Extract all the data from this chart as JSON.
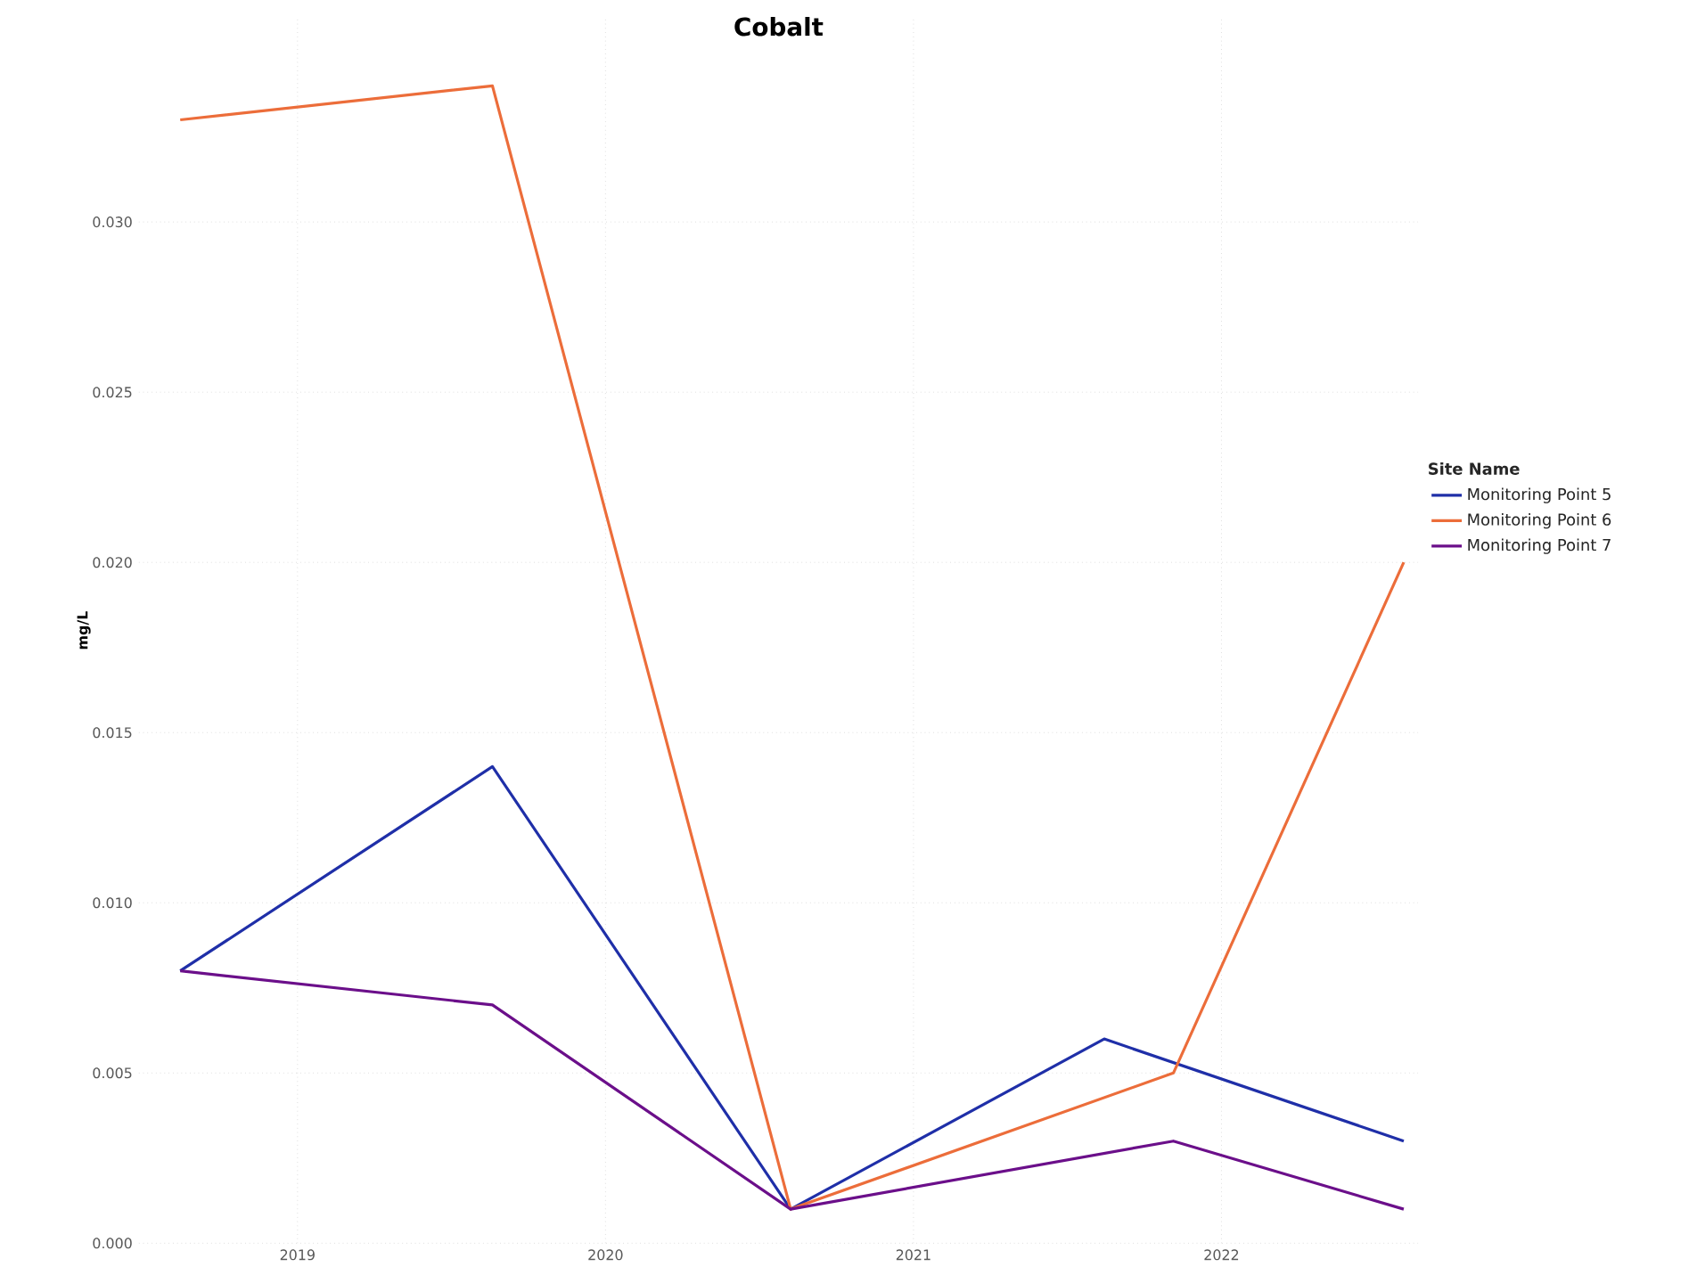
{
  "chart_data": {
    "type": "line",
    "title": "Cobalt",
    "ylabel": "mg/L",
    "legend_title": "Site Name",
    "x": [
      "2018-08-15",
      "2019-08-20",
      "2020-08-08",
      "2021-08-15",
      "2021-11-05",
      "2022-08-05"
    ],
    "series": [
      {
        "name": "Monitoring Point 5",
        "color": "#1f2fa8",
        "values": [
          0.008,
          0.014,
          0.001,
          0.006,
          null,
          0.003
        ]
      },
      {
        "name": "Monitoring Point 6",
        "color": "#ec6d3a",
        "values": [
          0.033,
          0.034,
          0.001,
          null,
          0.005,
          0.02
        ]
      },
      {
        "name": "Monitoring Point 7",
        "color": "#6b0f8a",
        "values": [
          0.008,
          0.007,
          0.001,
          null,
          0.003,
          0.001
        ]
      }
    ],
    "xlim": [
      "2018-06-27",
      "2022-08-22"
    ],
    "xticks": [
      "2019",
      "2020",
      "2021",
      "2022"
    ],
    "ylim": [
      0,
      0.036
    ],
    "yticks": [
      {
        "value": 0,
        "label": "0.000"
      },
      {
        "value": 0.005,
        "label": "0.005"
      },
      {
        "value": 0.01,
        "label": "0.010"
      },
      {
        "value": 0.015,
        "label": "0.015"
      },
      {
        "value": 0.02,
        "label": "0.020"
      },
      {
        "value": 0.025,
        "label": "0.025"
      },
      {
        "value": 0.03,
        "label": "0.030"
      }
    ],
    "grid": true,
    "legend": "right",
    "line_style": "solid",
    "marker": "none"
  }
}
